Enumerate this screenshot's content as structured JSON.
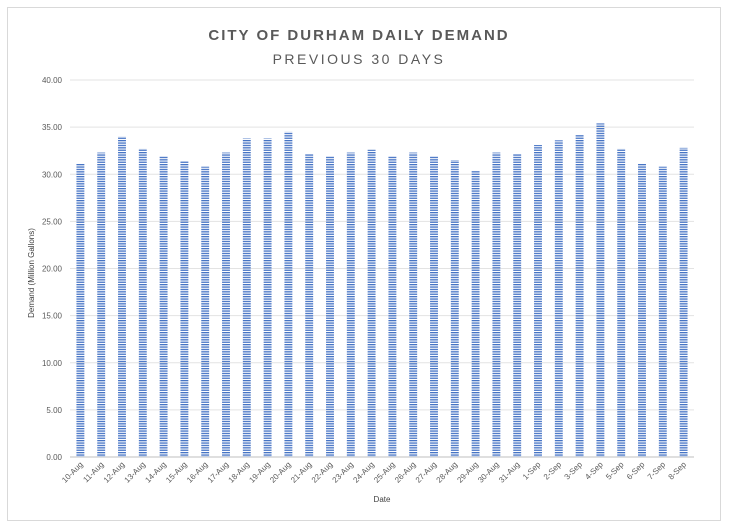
{
  "chart_data": {
    "type": "bar",
    "title": "CITY OF DURHAM DAILY DEMAND",
    "subtitle": "PREVIOUS 30 DAYS",
    "xlabel": "Date",
    "ylabel": "Demand (Million Gallons)",
    "ylim": [
      0,
      40
    ],
    "yticks": [
      "0.00",
      "5.00",
      "10.00",
      "15.00",
      "20.00",
      "25.00",
      "30.00",
      "35.00",
      "40.00"
    ],
    "grid": true,
    "legend": "none",
    "bar_color": "#4472c4",
    "categories": [
      "10-Aug",
      "11-Aug",
      "12-Aug",
      "13-Aug",
      "14-Aug",
      "15-Aug",
      "16-Aug",
      "17-Aug",
      "18-Aug",
      "19-Aug",
      "20-Aug",
      "21-Aug",
      "22-Aug",
      "23-Aug",
      "24-Aug",
      "25-Aug",
      "26-Aug",
      "27-Aug",
      "28-Aug",
      "29-Aug",
      "30-Aug",
      "31-Aug",
      "1-Sep",
      "2-Sep",
      "3-Sep",
      "4-Sep",
      "5-Sep",
      "6-Sep",
      "7-Sep",
      "8-Sep"
    ],
    "values": [
      31.1,
      32.3,
      34.0,
      32.7,
      31.9,
      31.4,
      30.8,
      32.3,
      33.8,
      33.8,
      34.5,
      32.2,
      31.9,
      32.3,
      32.6,
      31.9,
      32.3,
      31.9,
      31.5,
      30.4,
      32.3,
      32.2,
      33.1,
      33.6,
      34.2,
      35.4,
      32.7,
      31.1,
      30.8,
      32.8
    ]
  }
}
